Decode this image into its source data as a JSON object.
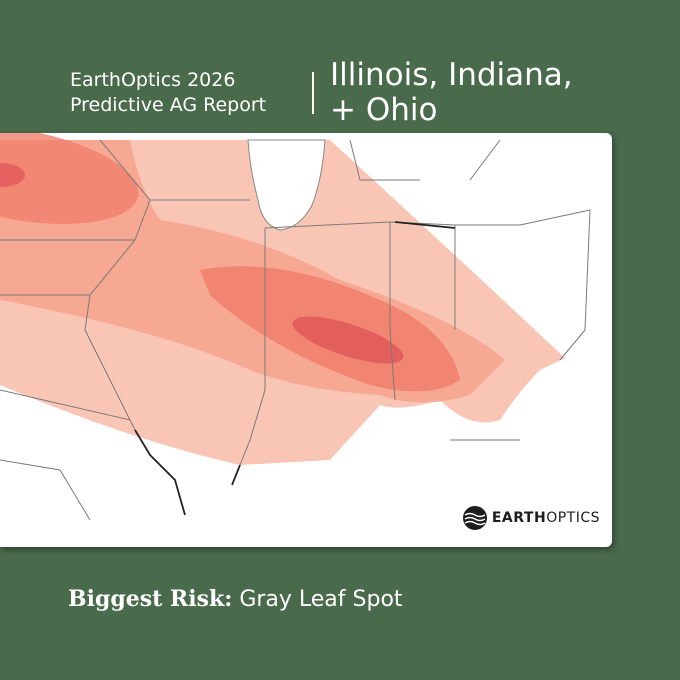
{
  "header": {
    "brand_line": "EarthOptics 2026",
    "report_line": "Predictive AG Report",
    "region_line_1": "Illinois, Indiana,",
    "region_line_2": "+ Ohio"
  },
  "logo": {
    "bold": "EARTH",
    "light": "OPTICS"
  },
  "footer": {
    "label": "Biggest Risk:",
    "value": "Gray Leaf Spot"
  }
}
